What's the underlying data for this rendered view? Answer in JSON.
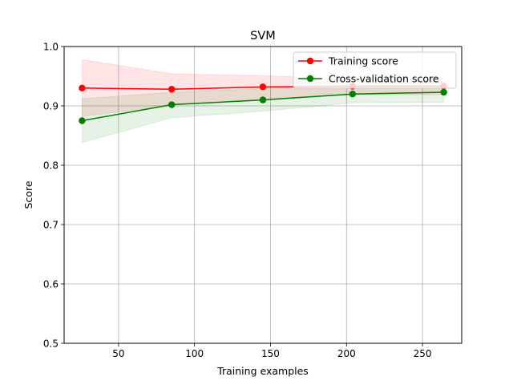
{
  "chart_data": {
    "type": "line",
    "title": "SVM",
    "xlabel": "Training examples",
    "ylabel": "Score",
    "xlim": [
      14.2,
      275.8
    ],
    "ylim": [
      0.5,
      1.0
    ],
    "xticks": [
      50,
      100,
      150,
      200,
      250
    ],
    "yticks": [
      0.5,
      0.6,
      0.7,
      0.8,
      0.9,
      1.0
    ],
    "grid": true,
    "legend_position": "top-right",
    "x": [
      26,
      85,
      145,
      204,
      264
    ],
    "series": [
      {
        "name": "Training score",
        "color": "#ff0000",
        "values": [
          0.93,
          0.928,
          0.932,
          0.933,
          0.933
        ],
        "band_lower": [
          0.882,
          0.901,
          0.912,
          0.919,
          0.919
        ],
        "band_upper": [
          0.978,
          0.954,
          0.951,
          0.945,
          0.946
        ]
      },
      {
        "name": "Cross-validation score",
        "color": "#008000",
        "values": [
          0.875,
          0.902,
          0.91,
          0.92,
          0.923
        ],
        "band_lower": [
          0.838,
          0.88,
          0.891,
          0.905,
          0.906
        ],
        "band_upper": [
          0.912,
          0.923,
          0.929,
          0.936,
          0.94
        ]
      }
    ]
  }
}
